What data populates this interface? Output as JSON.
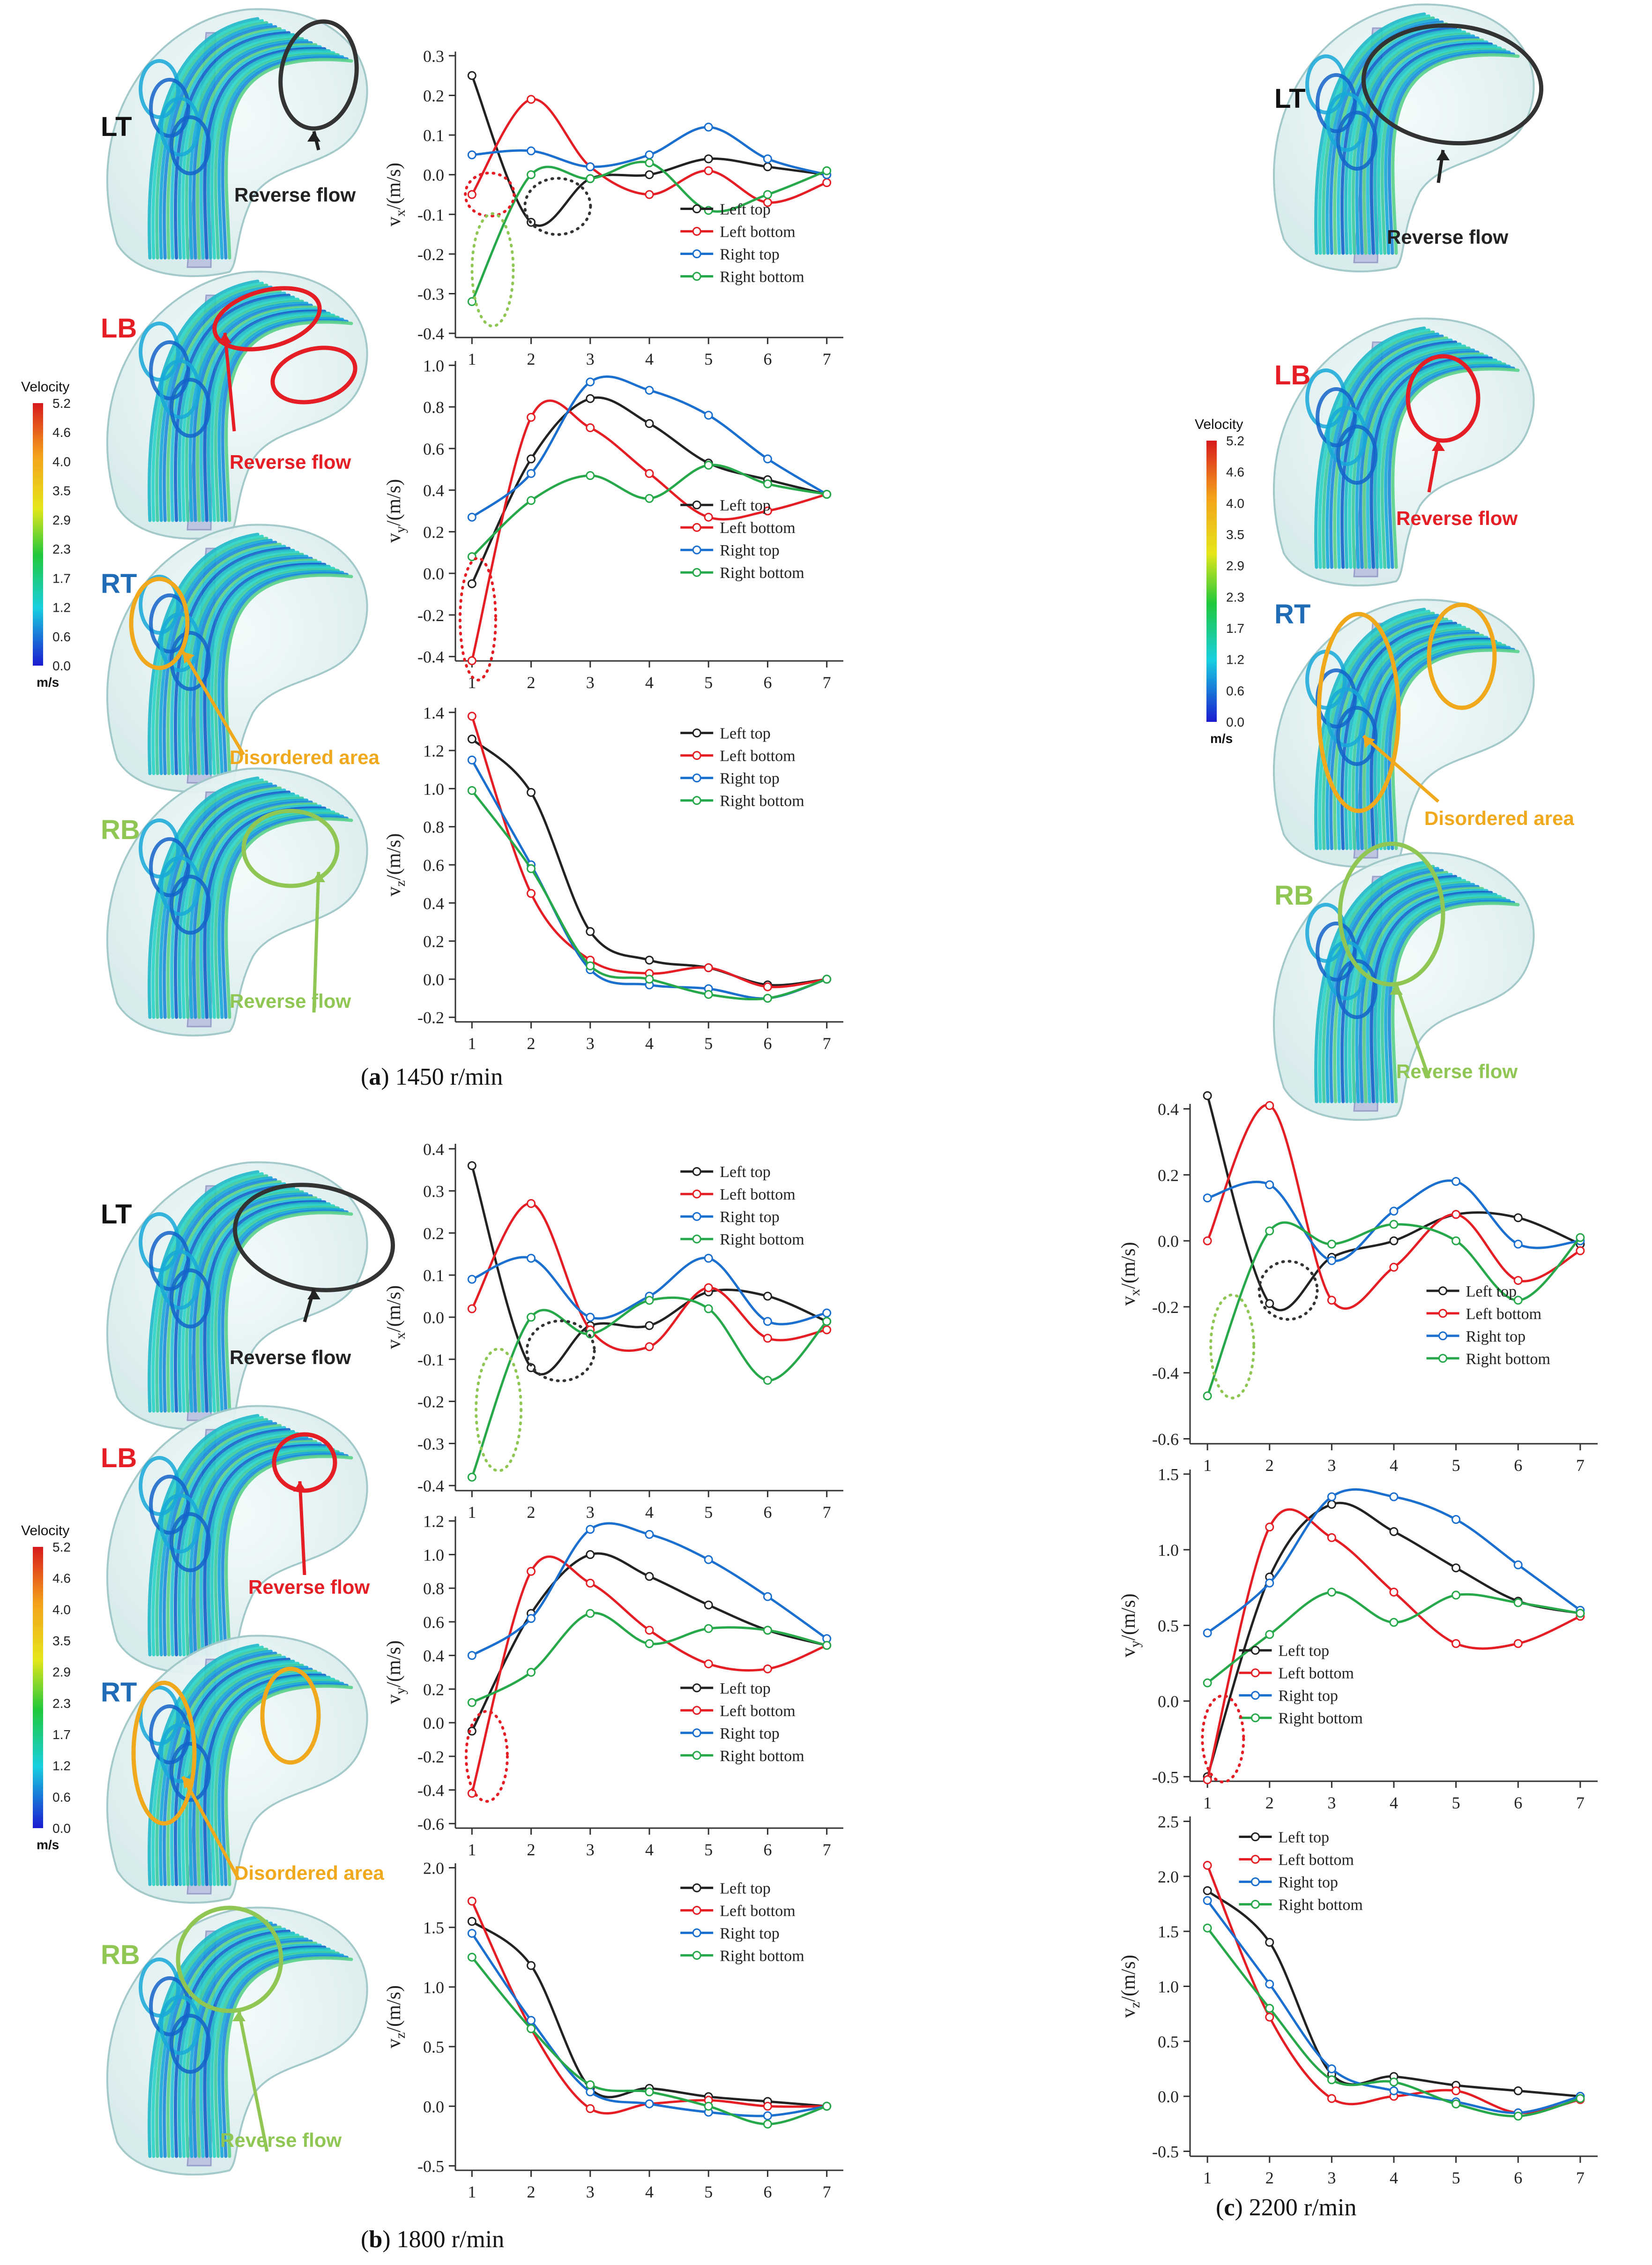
{
  "figure": {
    "captions": {
      "a": {
        "tag": "a",
        "text": "1450 r/min"
      },
      "b": {
        "tag": "b",
        "text": "1800 r/min"
      },
      "c": {
        "tag": "c",
        "text": "2200 r/min"
      }
    },
    "legend_bar": {
      "title": "Velocity",
      "unit": "m/s",
      "ticks": [
        "5.2",
        "4.6",
        "4.0",
        "3.5",
        "2.9",
        "2.3",
        "1.7",
        "1.2",
        "0.6",
        "0.0"
      ]
    },
    "panel_labels": {
      "lt": "LT",
      "lb": "LB",
      "rt": "RT",
      "rb": "RB"
    },
    "annotations": {
      "reverse": "Reverse flow",
      "disordered": "Disordered area"
    },
    "colors": {
      "lt": "#222222",
      "lb": "#e51e25",
      "rt": "#1a6fcf",
      "rb": "#27a84a",
      "lb_label": "#e51e25",
      "rt_label": "#1f6bb5",
      "rb_label": "#8fc654",
      "disordered": "#f0a81c",
      "reverse_rb": "#8fc654"
    }
  },
  "chart_data": [
    {
      "id": "a_vx",
      "type": "line",
      "group": "a",
      "ylabel": "vx/(m/s)",
      "xlabel": "",
      "x": [
        1,
        2,
        3,
        4,
        5,
        6,
        7
      ],
      "ylim": [
        -0.4,
        0.3
      ],
      "yticks": [
        -0.4,
        -0.3,
        -0.2,
        -0.1,
        0.0,
        0.1,
        0.2,
        0.3
      ],
      "ytick_labels": [
        "-0.4",
        "-0.3",
        "-0.2",
        "-0.1",
        "0.0",
        "0.1",
        "0.2",
        "0.3"
      ],
      "legend_position": "bottom-right",
      "series": [
        {
          "name": "Left top",
          "values": [
            0.25,
            -0.12,
            -0.01,
            0.0,
            0.04,
            0.02,
            0.0
          ]
        },
        {
          "name": "Left bottom",
          "values": [
            -0.05,
            0.19,
            0.02,
            -0.05,
            0.01,
            -0.07,
            -0.02
          ]
        },
        {
          "name": "Right top",
          "values": [
            0.05,
            0.06,
            0.02,
            0.05,
            0.12,
            0.04,
            0.0
          ]
        },
        {
          "name": "Right bottom",
          "values": [
            -0.32,
            0.0,
            -0.01,
            0.03,
            -0.09,
            -0.05,
            0.01
          ]
        }
      ]
    },
    {
      "id": "a_vy",
      "type": "line",
      "group": "a",
      "ylabel": "vy/(m/s)",
      "xlabel": "",
      "x": [
        1,
        2,
        3,
        4,
        5,
        6,
        7
      ],
      "ylim": [
        -0.4,
        1.0
      ],
      "yticks": [
        -0.4,
        -0.2,
        0.0,
        0.2,
        0.4,
        0.6,
        0.8,
        1.0
      ],
      "ytick_labels": [
        "-0.4",
        "-0.2",
        "0.0",
        "0.2",
        "0.4",
        "0.6",
        "0.8",
        "1.0"
      ],
      "legend_position": "middle-right",
      "series": [
        {
          "name": "Left top",
          "values": [
            -0.05,
            0.55,
            0.84,
            0.72,
            0.53,
            0.45,
            0.38
          ]
        },
        {
          "name": "Left bottom",
          "values": [
            -0.42,
            0.75,
            0.7,
            0.48,
            0.27,
            0.3,
            0.38
          ]
        },
        {
          "name": "Right top",
          "values": [
            0.27,
            0.48,
            0.92,
            0.88,
            0.76,
            0.55,
            0.38
          ]
        },
        {
          "name": "Right bottom",
          "values": [
            0.08,
            0.35,
            0.47,
            0.36,
            0.52,
            0.43,
            0.38
          ]
        }
      ]
    },
    {
      "id": "a_vz",
      "type": "line",
      "group": "a",
      "ylabel": "vz/(m/s)",
      "xlabel": "",
      "x": [
        1,
        2,
        3,
        4,
        5,
        6,
        7
      ],
      "ylim": [
        -0.2,
        1.4
      ],
      "yticks": [
        -0.2,
        0.0,
        0.2,
        0.4,
        0.6,
        0.8,
        1.0,
        1.2,
        1.4
      ],
      "ytick_labels": [
        "-0.2",
        "0.0",
        "0.2",
        "0.4",
        "0.6",
        "0.8",
        "1.0",
        "1.2",
        "1.4"
      ],
      "legend_position": "top-right",
      "series": [
        {
          "name": "Left top",
          "values": [
            1.26,
            0.98,
            0.25,
            0.1,
            0.06,
            -0.03,
            0.0
          ]
        },
        {
          "name": "Left bottom",
          "values": [
            1.38,
            0.45,
            0.1,
            0.03,
            0.06,
            -0.04,
            0.0
          ]
        },
        {
          "name": "Right top",
          "values": [
            1.15,
            0.6,
            0.05,
            -0.03,
            -0.05,
            -0.1,
            0.0
          ]
        },
        {
          "name": "Right bottom",
          "values": [
            0.99,
            0.58,
            0.07,
            0.0,
            -0.08,
            -0.1,
            0.0
          ]
        }
      ]
    },
    {
      "id": "b_vx",
      "type": "line",
      "group": "b",
      "ylabel": "vx/(m/s)",
      "xlabel": "",
      "x": [
        1,
        2,
        3,
        4,
        5,
        6,
        7
      ],
      "ylim": [
        -0.4,
        0.4
      ],
      "yticks": [
        -0.4,
        -0.3,
        -0.2,
        -0.1,
        0.0,
        0.1,
        0.2,
        0.3,
        0.4
      ],
      "ytick_labels": [
        "-0.4",
        "-0.3",
        "-0.2",
        "-0.1",
        "0.0",
        "0.1",
        "0.2",
        "0.3",
        "0.4"
      ],
      "legend_position": "top-right",
      "series": [
        {
          "name": "Left top",
          "values": [
            0.36,
            -0.12,
            -0.02,
            -0.02,
            0.06,
            0.05,
            -0.01
          ]
        },
        {
          "name": "Left bottom",
          "values": [
            0.02,
            0.27,
            -0.03,
            -0.07,
            0.07,
            -0.05,
            -0.03
          ]
        },
        {
          "name": "Right top",
          "values": [
            0.09,
            0.14,
            0.0,
            0.05,
            0.14,
            -0.01,
            0.01
          ]
        },
        {
          "name": "Right bottom",
          "values": [
            -0.38,
            0.0,
            -0.04,
            0.04,
            0.02,
            -0.15,
            -0.01
          ]
        }
      ]
    },
    {
      "id": "b_vy",
      "type": "line",
      "group": "b",
      "ylabel": "vy/(m/s)",
      "xlabel": "",
      "x": [
        1,
        2,
        3,
        4,
        5,
        6,
        7
      ],
      "ylim": [
        -0.6,
        1.2
      ],
      "yticks": [
        -0.6,
        -0.4,
        -0.2,
        0.0,
        0.2,
        0.4,
        0.6,
        0.8,
        1.0,
        1.2
      ],
      "ytick_labels": [
        "-0.6",
        "-0.4",
        "-0.2",
        "0.0",
        "0.2",
        "0.4",
        "0.6",
        "0.8",
        "1.0",
        "1.2"
      ],
      "legend_position": "bottom-right",
      "series": [
        {
          "name": "Left top",
          "values": [
            -0.05,
            0.65,
            1.0,
            0.87,
            0.7,
            0.55,
            0.46
          ]
        },
        {
          "name": "Left bottom",
          "values": [
            -0.42,
            0.9,
            0.83,
            0.55,
            0.35,
            0.32,
            0.46
          ]
        },
        {
          "name": "Right top",
          "values": [
            0.4,
            0.62,
            1.15,
            1.12,
            0.97,
            0.75,
            0.5
          ]
        },
        {
          "name": "Right bottom",
          "values": [
            0.12,
            0.3,
            0.65,
            0.47,
            0.56,
            0.55,
            0.46
          ]
        }
      ]
    },
    {
      "id": "b_vz",
      "type": "line",
      "group": "b",
      "ylabel": "vz/(m/s)",
      "xlabel": "",
      "x": [
        1,
        2,
        3,
        4,
        5,
        6,
        7
      ],
      "ylim": [
        -0.5,
        2.0
      ],
      "yticks": [
        -0.5,
        0.0,
        0.5,
        1.0,
        1.5,
        2.0
      ],
      "ytick_labels": [
        "-0.5",
        "0.0",
        "0.5",
        "1.0",
        "1.5",
        "2.0"
      ],
      "legend_position": "top-right",
      "series": [
        {
          "name": "Left top",
          "values": [
            1.55,
            1.18,
            0.15,
            0.15,
            0.08,
            0.04,
            0.0
          ]
        },
        {
          "name": "Left bottom",
          "values": [
            1.72,
            0.65,
            -0.02,
            0.02,
            0.05,
            0.0,
            0.0
          ]
        },
        {
          "name": "Right top",
          "values": [
            1.45,
            0.72,
            0.12,
            0.02,
            -0.05,
            -0.08,
            0.0
          ]
        },
        {
          "name": "Right bottom",
          "values": [
            1.25,
            0.65,
            0.18,
            0.12,
            0.0,
            -0.15,
            0.0
          ]
        }
      ]
    },
    {
      "id": "c_vx",
      "type": "line",
      "group": "c",
      "ylabel": "vx/(m/s)",
      "xlabel": "",
      "x": [
        1,
        2,
        3,
        4,
        5,
        6,
        7
      ],
      "ylim": [
        -0.6,
        0.4
      ],
      "yticks": [
        -0.6,
        -0.4,
        -0.2,
        0.0,
        0.2,
        0.4
      ],
      "ytick_labels": [
        "-0.6",
        "-0.4",
        "-0.2",
        "0.0",
        "0.2",
        "0.4"
      ],
      "legend_position": "bottom-right",
      "series": [
        {
          "name": "Left top",
          "values": [
            0.44,
            -0.19,
            -0.05,
            0.0,
            0.08,
            0.07,
            -0.01
          ]
        },
        {
          "name": "Left bottom",
          "values": [
            0.0,
            0.41,
            -0.18,
            -0.08,
            0.08,
            -0.12,
            -0.03
          ]
        },
        {
          "name": "Right top",
          "values": [
            0.13,
            0.17,
            -0.06,
            0.09,
            0.18,
            -0.01,
            0.0
          ]
        },
        {
          "name": "Right bottom",
          "values": [
            -0.47,
            0.03,
            -0.01,
            0.05,
            0.0,
            -0.18,
            0.01
          ]
        }
      ]
    },
    {
      "id": "c_vy",
      "type": "line",
      "group": "c",
      "ylabel": "vy/(m/s)",
      "xlabel": "",
      "x": [
        1,
        2,
        3,
        4,
        5,
        6,
        7
      ],
      "ylim": [
        -0.5,
        1.5
      ],
      "yticks": [
        -0.5,
        0.0,
        0.5,
        1.0,
        1.5
      ],
      "ytick_labels": [
        "-0.5",
        "0.0",
        "0.5",
        "1.0",
        "1.5"
      ],
      "legend_position": "bottom-left",
      "series": [
        {
          "name": "Left top",
          "values": [
            -0.5,
            0.82,
            1.3,
            1.12,
            0.88,
            0.66,
            0.58
          ]
        },
        {
          "name": "Left bottom",
          "values": [
            -0.52,
            1.15,
            1.08,
            0.72,
            0.38,
            0.38,
            0.56
          ]
        },
        {
          "name": "Right top",
          "values": [
            0.45,
            0.78,
            1.35,
            1.35,
            1.2,
            0.9,
            0.6
          ]
        },
        {
          "name": "Right bottom",
          "values": [
            0.12,
            0.44,
            0.72,
            0.52,
            0.7,
            0.65,
            0.58
          ]
        }
      ]
    },
    {
      "id": "c_vz",
      "type": "line",
      "group": "c",
      "ylabel": "vz/(m/s)",
      "xlabel": "",
      "x": [
        1,
        2,
        3,
        4,
        5,
        6,
        7
      ],
      "ylim": [
        -0.5,
        2.5
      ],
      "yticks": [
        -0.5,
        0.0,
        0.5,
        1.0,
        1.5,
        2.0,
        2.5
      ],
      "ytick_labels": [
        "-0.5",
        "0.0",
        "0.5",
        "1.0",
        "1.5",
        "2.0",
        "2.5"
      ],
      "legend_position": "top-left",
      "series": [
        {
          "name": "Left top",
          "values": [
            1.87,
            1.4,
            0.2,
            0.18,
            0.1,
            0.05,
            0.0
          ]
        },
        {
          "name": "Left bottom",
          "values": [
            2.1,
            0.72,
            -0.02,
            0.0,
            0.05,
            -0.15,
            -0.03
          ]
        },
        {
          "name": "Right top",
          "values": [
            1.78,
            1.02,
            0.25,
            0.05,
            -0.05,
            -0.15,
            0.0
          ]
        },
        {
          "name": "Right bottom",
          "values": [
            1.53,
            0.8,
            0.15,
            0.13,
            -0.07,
            -0.18,
            -0.02
          ]
        }
      ]
    }
  ]
}
